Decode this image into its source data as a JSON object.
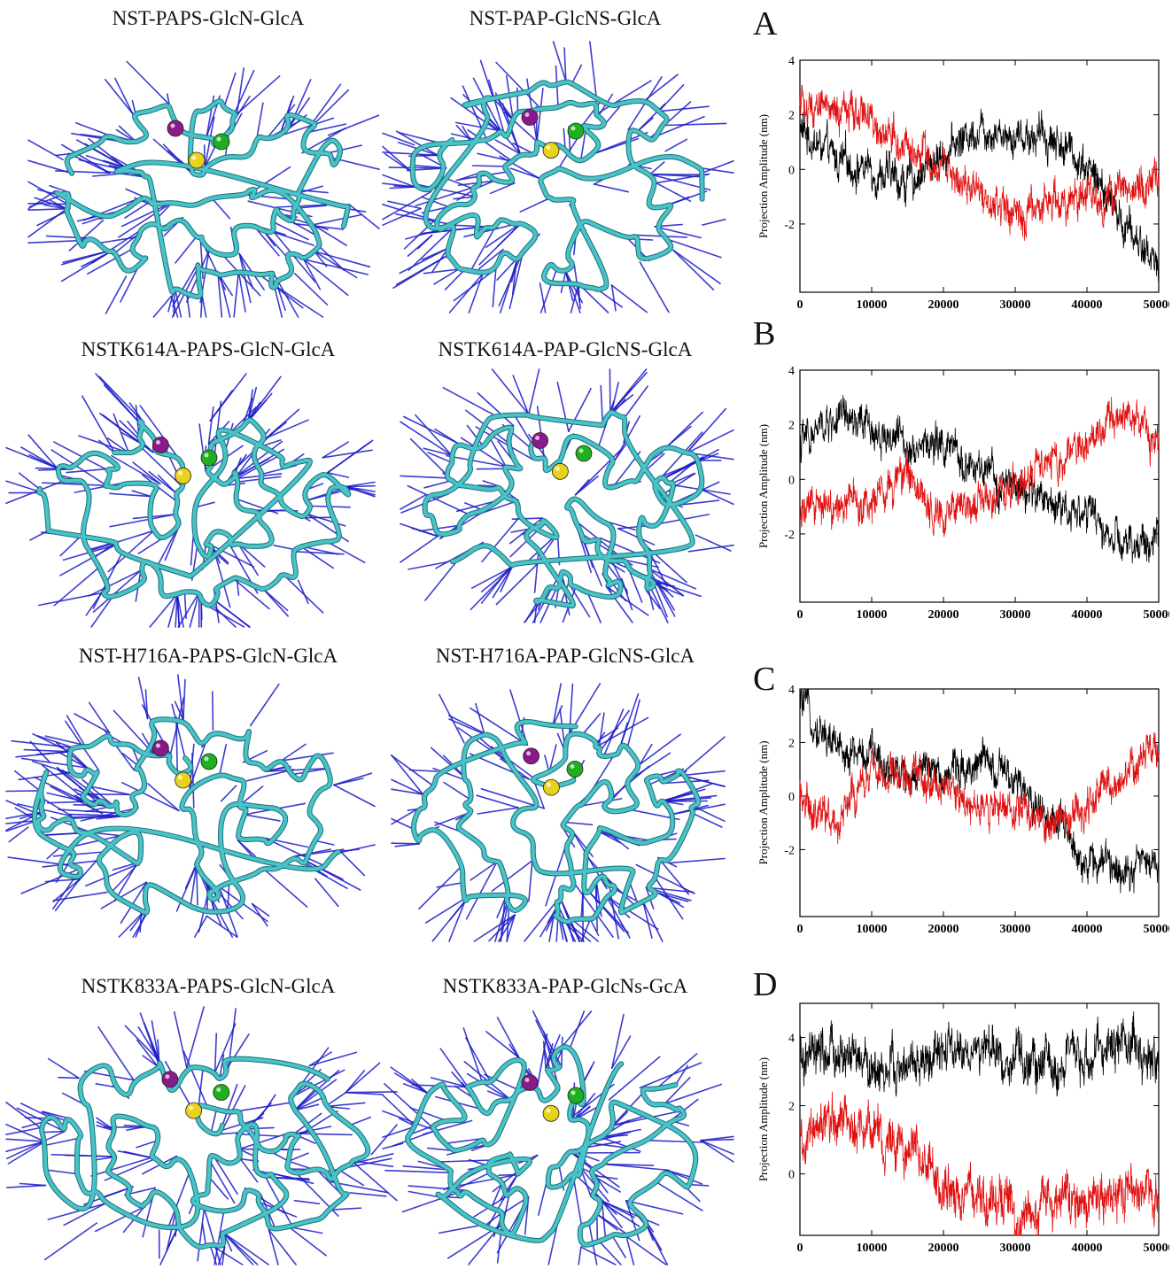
{
  "titles": {
    "r1_left": "NST-PAPS-GlcN-GlcA",
    "r1_right": "NST-PAP-GlcNS-GlcA",
    "r2_left": "NSTK614A-PAPS-GlcN-GlcA",
    "r2_right": "NSTK614A-PAP-GlcNS-GlcA",
    "r3_left": "NST-H716A-PAPS-GlcN-GlcA",
    "r3_right": "NST-H716A-PAP-GlcNS-GlcA",
    "r4_left": "NSTK833A-PAPS-GlcN-GlcA",
    "r4_right": "NSTK833A-PAP-GlcNs-GcA"
  },
  "colors": {
    "backbone": "#47c3c9",
    "backbone_edge": "#1f6f74",
    "vectors": "#1b1bc8",
    "sphere_purple": "#8a1a8a",
    "sphere_green": "#1fb01f",
    "sphere_yellow": "#e8d21a",
    "series_black": "#000000",
    "series_red": "#e01010"
  },
  "chart_data": [
    {
      "type": "line",
      "panel": "A",
      "ylabel": "Projection Amplitude (nm)",
      "xlabel": "",
      "xlim": [
        0,
        50000
      ],
      "ylim": [
        -4.5,
        4
      ],
      "xticks": [
        "0",
        "10000",
        "20000",
        "30000",
        "40000",
        "50000"
      ],
      "yticks": [
        "-2",
        "0",
        "2",
        "4"
      ],
      "series": [
        {
          "color": "#000000",
          "x": [
            0,
            5000,
            10000,
            15000,
            20000,
            25000,
            30000,
            35000,
            40000,
            45000,
            50000
          ],
          "values": [
            1.5,
            0.3,
            0.0,
            -0.5,
            0.6,
            1.6,
            1.3,
            1.2,
            0.2,
            -2.0,
            -3.5
          ]
        },
        {
          "color": "#e01010",
          "x": [
            0,
            5000,
            10000,
            15000,
            20000,
            25000,
            30000,
            35000,
            40000,
            45000,
            50000
          ],
          "values": [
            2.3,
            2.1,
            2.0,
            0.5,
            0.2,
            -1.0,
            -1.6,
            -1.3,
            -1.1,
            -0.7,
            -0.4
          ]
        }
      ]
    },
    {
      "type": "line",
      "panel": "B",
      "ylabel": "Projection Amplitude (nm)",
      "xlabel": "",
      "xlim": [
        0,
        50000
      ],
      "ylim": [
        -4.5,
        4
      ],
      "xticks": [
        "0",
        "10000",
        "20000",
        "30000",
        "40000",
        "50000"
      ],
      "yticks": [
        "-2",
        "0",
        "2",
        "4"
      ],
      "series": [
        {
          "color": "#000000",
          "x": [
            0,
            5000,
            10000,
            15000,
            20000,
            25000,
            30000,
            35000,
            40000,
            45000,
            50000
          ],
          "values": [
            1.3,
            2.2,
            1.8,
            1.4,
            1.2,
            0.2,
            -0.4,
            -0.8,
            -1.2,
            -2.6,
            -2.2
          ]
        },
        {
          "color": "#e01010",
          "x": [
            0,
            5000,
            10000,
            15000,
            20000,
            25000,
            30000,
            35000,
            40000,
            45000,
            50000
          ],
          "values": [
            -1.2,
            -1.4,
            -0.6,
            0.0,
            -1.5,
            -0.8,
            -0.2,
            0.6,
            1.5,
            2.3,
            1.6
          ]
        }
      ]
    },
    {
      "type": "line",
      "panel": "C",
      "ylabel": "Projection Amplitude (nm)",
      "xlabel": "",
      "xlim": [
        0,
        50000
      ],
      "ylim": [
        -4.5,
        4
      ],
      "xticks": [
        "0",
        "10000",
        "20000",
        "30000",
        "40000",
        "50000"
      ],
      "yticks": [
        "-2",
        "0",
        "2",
        "4"
      ],
      "series": [
        {
          "color": "#000000",
          "x": [
            0,
            5000,
            10000,
            15000,
            20000,
            25000,
            30000,
            35000,
            40000,
            45000,
            50000
          ],
          "values": [
            3.5,
            1.8,
            1.5,
            0.8,
            0.9,
            1.3,
            0.4,
            -0.8,
            -2.5,
            -2.6,
            -2.4
          ]
        },
        {
          "color": "#e01010",
          "x": [
            0,
            5000,
            10000,
            15000,
            20000,
            25000,
            30000,
            35000,
            40000,
            45000,
            50000
          ],
          "values": [
            0.0,
            -1.0,
            0.8,
            0.8,
            0.3,
            -0.3,
            -0.6,
            -1.0,
            -0.3,
            0.8,
            1.9
          ]
        }
      ]
    },
    {
      "type": "line",
      "panel": "D",
      "ylabel": "Projection Amplitude (nm)",
      "xlabel": "",
      "xlim": [
        0,
        50000
      ],
      "ylim": [
        -1.8,
        5
      ],
      "xticks": [
        "0",
        "10000",
        "20000",
        "30000",
        "40000",
        "50000"
      ],
      "yticks": [
        "0",
        "2",
        "4"
      ],
      "series": [
        {
          "color": "#000000",
          "x": [
            0,
            5000,
            10000,
            15000,
            20000,
            25000,
            30000,
            35000,
            40000,
            45000,
            50000
          ],
          "values": [
            3.2,
            3.5,
            3.1,
            3.0,
            3.5,
            3.6,
            3.3,
            3.2,
            3.3,
            4.0,
            3.2
          ]
        },
        {
          "color": "#e01010",
          "x": [
            0,
            5000,
            10000,
            15000,
            20000,
            25000,
            30000,
            35000,
            40000,
            45000,
            50000
          ],
          "values": [
            0.8,
            1.6,
            1.3,
            0.6,
            -0.4,
            -0.7,
            -1.0,
            -1.1,
            -0.8,
            -0.6,
            -0.4
          ]
        }
      ]
    }
  ]
}
